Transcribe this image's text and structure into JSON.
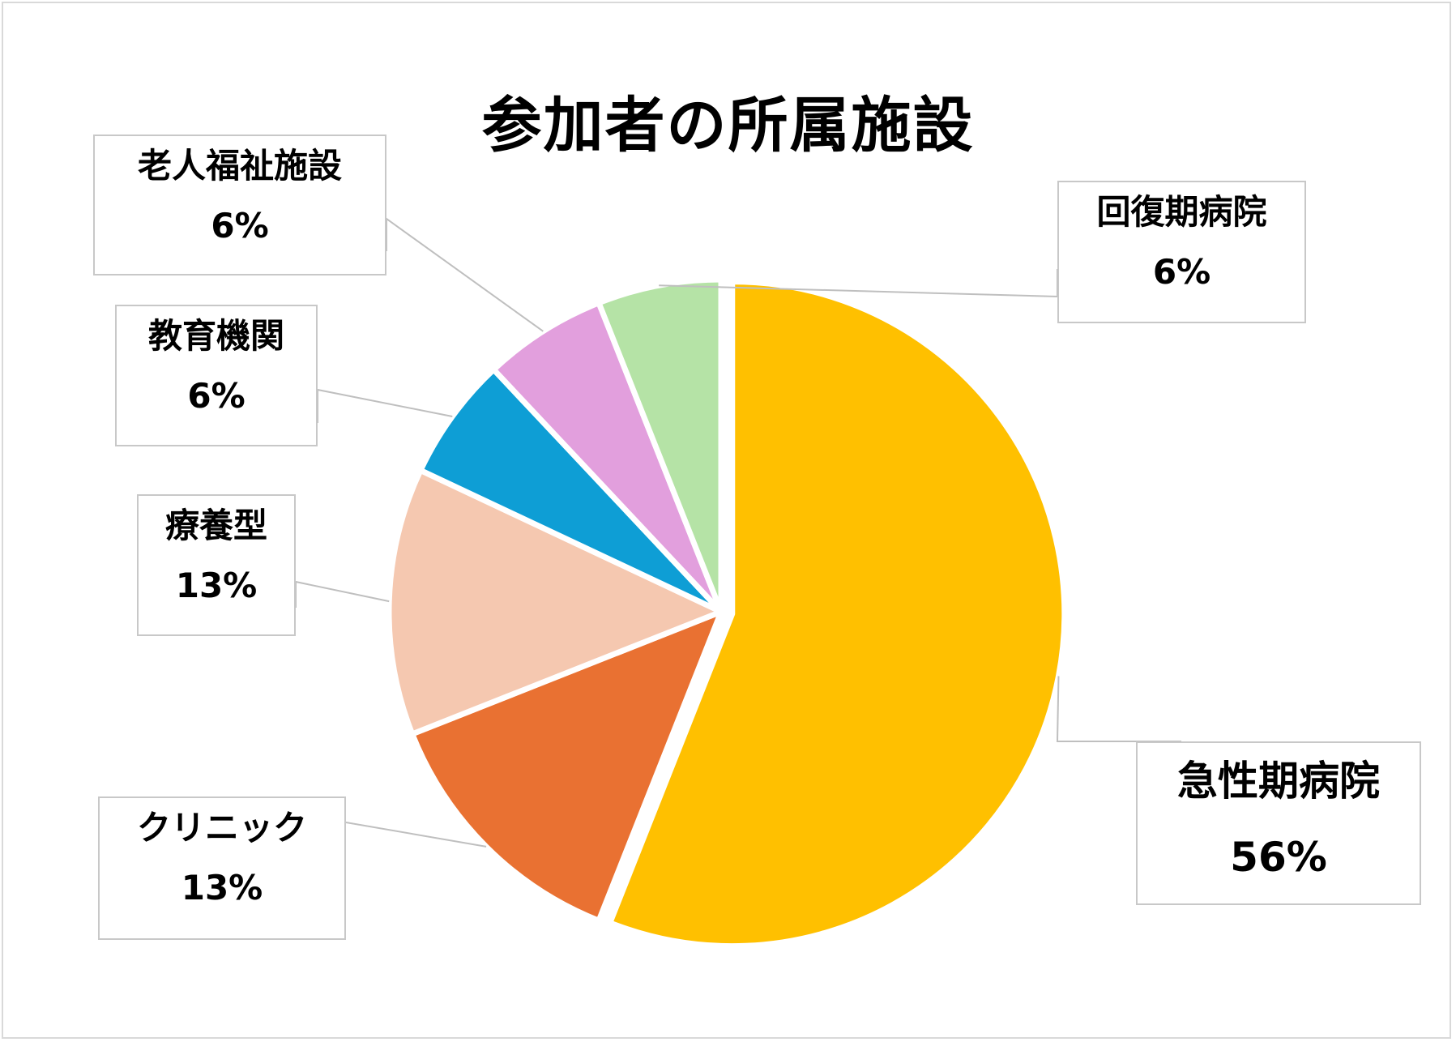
{
  "chart_data": {
    "type": "pie",
    "title": "参加者の所属施設",
    "categories": [
      "急性期病院",
      "クリニック",
      "療養型",
      "教育機関",
      "老人福祉施設",
      "回復期病院"
    ],
    "values": [
      56,
      13,
      13,
      6,
      6,
      6
    ],
    "value_labels": [
      "56%",
      "13%",
      "13%",
      "6%",
      "6%",
      "6%"
    ],
    "colors": [
      "#FFC000",
      "#E97132",
      "#F5C8B0",
      "#0E9ED5",
      "#E29FDD",
      "#B5E3A6"
    ],
    "start": "12 o'clock",
    "direction": "clockwise",
    "legend": "none",
    "data_labels": "callouts outside slices"
  }
}
